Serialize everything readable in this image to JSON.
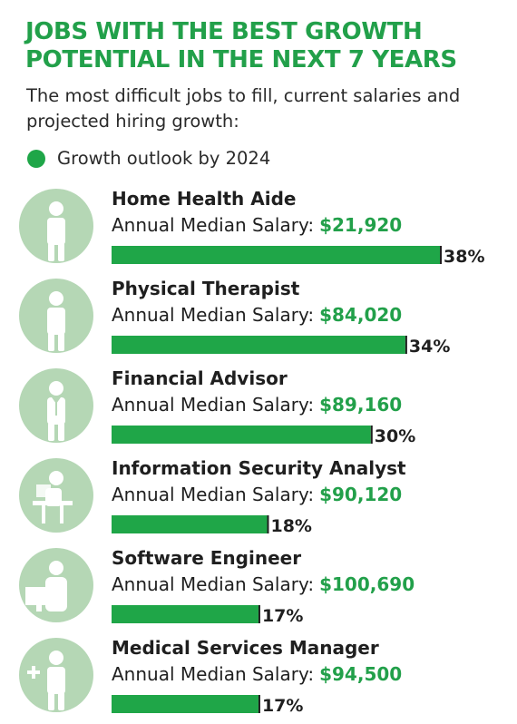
{
  "title": "JOBS WITH THE BEST GROWTH POTENTIAL IN THE NEXT 7 YEARS",
  "subtitle": "The most difficult jobs to fill, current salaries and projected hiring growth:",
  "legend_label": "Growth outlook by 2024",
  "salary_prefix": "Annual Median Salary:",
  "colors": {
    "bar": "#1fa648",
    "accent": "#22a04a",
    "icon_circle": "#b5d7b5",
    "icon_figure": "#ffffff"
  },
  "chart_data": {
    "type": "bar",
    "orientation": "horizontal",
    "title": "JOBS WITH THE BEST GROWTH POTENTIAL IN THE NEXT 7 YEARS",
    "series": [
      {
        "name": "Growth outlook by 2024",
        "values": [
          38,
          34,
          30,
          18,
          17,
          17
        ]
      }
    ],
    "categories": [
      "Home Health Aide",
      "Physical Therapist",
      "Financial Advisor",
      "Information Security Analyst",
      "Software Engineer",
      "Medical Services Manager"
    ],
    "value_labels": [
      "38%",
      "34%",
      "30%",
      "18%",
      "17%",
      "17%"
    ],
    "salaries": [
      "$21,920",
      "$84,020",
      "$89,160",
      "$90,120",
      "$100,690",
      "$94,500"
    ],
    "icons": [
      "home-health-aide-icon",
      "physical-therapist-icon",
      "financial-advisor-icon",
      "security-analyst-icon",
      "software-engineer-icon",
      "medical-manager-icon"
    ],
    "value_unit": "%",
    "xlim": [
      0,
      38
    ],
    "grid": false,
    "legend_position": "top-left"
  }
}
